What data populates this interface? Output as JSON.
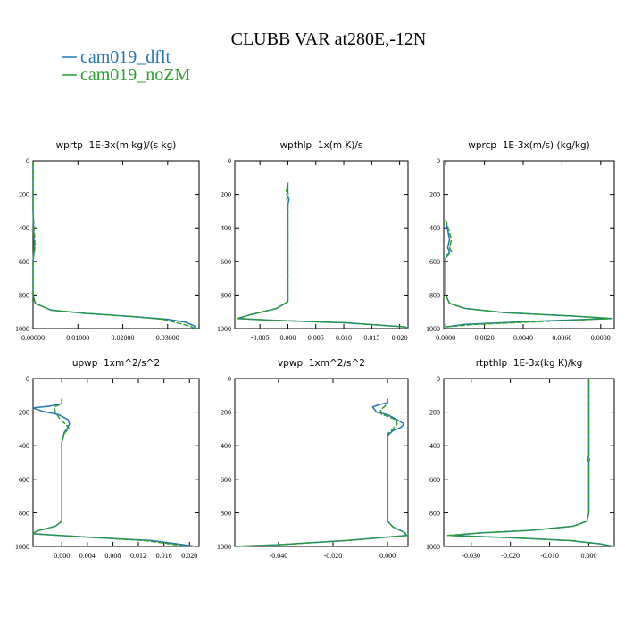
{
  "figure": {
    "title": "CLUBB VAR at280E,-12N",
    "legend": [
      {
        "name": "cam019_dflt",
        "color": "#1f77b4"
      },
      {
        "name": "cam019_noZM",
        "color": "#2ca02c"
      }
    ]
  },
  "chart_data": [
    {
      "type": "line",
      "title": "wprtp  1E-3x(m kg)/(s kg)",
      "xlim": [
        0.0,
        0.037
      ],
      "ylim": [
        0,
        1000
      ],
      "y_reversed": true,
      "xticks": [
        0.0,
        0.01,
        0.02,
        0.03
      ],
      "xtick_labels": [
        "0.00000",
        "0.01000",
        "0.02000",
        "0.03000"
      ],
      "yticks": [
        0,
        200,
        400,
        600,
        800,
        1000
      ],
      "ytick_labels": [
        "0",
        "200",
        "400",
        "600",
        "800",
        "1000"
      ],
      "series": [
        {
          "name": "cam019_dflt",
          "color": "#1f77b4",
          "points": [
            [
              0.0,
              5
            ],
            [
              0.0,
              300
            ],
            [
              0.0002,
              480
            ],
            [
              0.0002,
              520
            ],
            [
              0.0,
              600
            ],
            [
              0.0,
              800
            ],
            [
              0.0005,
              850
            ],
            [
              0.004,
              890
            ],
            [
              0.012,
              910
            ],
            [
              0.022,
              928
            ],
            [
              0.03,
              945
            ],
            [
              0.034,
              962
            ],
            [
              0.036,
              985
            ],
            [
              0.036,
              1000
            ]
          ]
        },
        {
          "name": "cam019_noZM",
          "color": "#2ca02c",
          "points": [
            [
              0.0,
              5
            ],
            [
              0.0,
              300
            ],
            [
              0.0004,
              480
            ],
            [
              0.0004,
              520
            ],
            [
              0.0,
              600
            ],
            [
              0.0,
              800
            ],
            [
              0.0005,
              850
            ],
            [
              0.004,
              890
            ],
            [
              0.012,
              910
            ],
            [
              0.022,
              928
            ],
            [
              0.029,
              945
            ],
            [
              0.032,
              965
            ],
            [
              0.035,
              985
            ],
            [
              0.036,
              1000
            ]
          ]
        }
      ]
    },
    {
      "type": "line",
      "title": "wpthlp  1x(m K)/s",
      "xlim": [
        -0.0095,
        0.0215
      ],
      "ylim": [
        0,
        1000
      ],
      "y_reversed": true,
      "xticks": [
        -0.005,
        0.0,
        0.005,
        0.01,
        0.015,
        0.02
      ],
      "xtick_labels": [
        "-0.005",
        "0.000",
        "0.005",
        "0.010",
        "0.015",
        "0.020"
      ],
      "yticks": [
        0,
        200,
        400,
        600,
        800,
        1000
      ],
      "ytick_labels": [
        "0",
        "200",
        "400",
        "600",
        "800",
        "1000"
      ],
      "series": [
        {
          "name": "cam019_dflt",
          "color": "#1f77b4",
          "points": [
            [
              0.0,
              130
            ],
            [
              0.0,
              180
            ],
            [
              -0.0002,
              200
            ],
            [
              0.0002,
              230
            ],
            [
              0.0,
              260
            ],
            [
              0.0,
              800
            ],
            [
              0.0,
              840
            ],
            [
              -0.002,
              880
            ],
            [
              -0.007,
              920
            ],
            [
              -0.009,
              940
            ],
            [
              -0.003,
              950
            ],
            [
              0.01,
              965
            ],
            [
              0.021,
              990
            ],
            [
              0.0215,
              1000
            ]
          ]
        },
        {
          "name": "cam019_noZM",
          "color": "#2ca02c",
          "points": [
            [
              0.0,
              130
            ],
            [
              -0.0003,
              180
            ],
            [
              0.0002,
              200
            ],
            [
              -0.0002,
              230
            ],
            [
              0.0,
              260
            ],
            [
              0.0,
              800
            ],
            [
              0.0,
              840
            ],
            [
              -0.002,
              880
            ],
            [
              -0.007,
              920
            ],
            [
              -0.009,
              940
            ],
            [
              -0.003,
              950
            ],
            [
              0.01,
              965
            ],
            [
              0.021,
              990
            ],
            [
              0.0215,
              1000
            ]
          ]
        }
      ]
    },
    {
      "type": "line",
      "title": "wprcp  1E-3x(m/s) (kg/kg)",
      "xlim": [
        -0.0001,
        0.0087
      ],
      "ylim": [
        0,
        1000
      ],
      "y_reversed": true,
      "xticks": [
        0.0,
        0.002,
        0.004,
        0.006,
        0.008
      ],
      "xtick_labels": [
        "0.0000",
        "0.0020",
        "0.0040",
        "0.0060",
        "0.0080"
      ],
      "yticks": [
        0,
        200,
        400,
        600,
        800,
        1000
      ],
      "ytick_labels": [
        "0",
        "200",
        "400",
        "600",
        "800",
        "1000"
      ],
      "series": [
        {
          "name": "cam019_dflt",
          "color": "#1f77b4",
          "points": [
            [
              0.0,
              350
            ],
            [
              0.0002,
              470
            ],
            [
              0.0001,
              520
            ],
            [
              0.0002,
              540
            ],
            [
              0.0,
              580
            ],
            [
              0.0,
              800
            ],
            [
              0.0002,
              850
            ],
            [
              0.001,
              880
            ],
            [
              0.003,
              905
            ],
            [
              0.0065,
              925
            ],
            [
              0.0085,
              940
            ],
            [
              0.005,
              955
            ],
            [
              0.001,
              975
            ],
            [
              0.0,
              990
            ]
          ]
        },
        {
          "name": "cam019_noZM",
          "color": "#2ca02c",
          "points": [
            [
              0.0,
              350
            ],
            [
              0.0003,
              470
            ],
            [
              0.0002,
              520
            ],
            [
              0.0003,
              540
            ],
            [
              0.0,
              580
            ],
            [
              0.0,
              800
            ],
            [
              0.0002,
              850
            ],
            [
              0.001,
              880
            ],
            [
              0.003,
              905
            ],
            [
              0.0065,
              925
            ],
            [
              0.0086,
              940
            ],
            [
              0.0055,
              955
            ],
            [
              0.0015,
              975
            ],
            [
              0.0,
              990
            ]
          ]
        }
      ]
    },
    {
      "type": "line",
      "title": "upwp  1xm^2/s^2",
      "xlim": [
        -0.0045,
        0.0215
      ],
      "ylim": [
        0,
        1000
      ],
      "y_reversed": true,
      "xticks": [
        0.0,
        0.004,
        0.008,
        0.012,
        0.016,
        0.02
      ],
      "xtick_labels": [
        "0.000",
        "0.004",
        "0.008",
        "0.012",
        "0.016",
        "0.020"
      ],
      "yticks": [
        0,
        200,
        400,
        600,
        800,
        1000
      ],
      "ytick_labels": [
        "0",
        "200",
        "400",
        "600",
        "800",
        "1000"
      ],
      "series": [
        {
          "name": "cam019_dflt",
          "color": "#1f77b4",
          "points": [
            [
              0.0,
              120
            ],
            [
              0.0,
              150
            ],
            [
              -0.002,
              165
            ],
            [
              -0.0045,
              175
            ],
            [
              -0.003,
              195
            ],
            [
              -0.0005,
              215
            ],
            [
              0.001,
              245
            ],
            [
              0.0012,
              270
            ],
            [
              0.0008,
              300
            ],
            [
              0.0004,
              320
            ],
            [
              0.0,
              380
            ],
            [
              0.0,
              800
            ],
            [
              0.0,
              850
            ],
            [
              -0.001,
              880
            ],
            [
              -0.004,
              910
            ],
            [
              -0.0045,
              925
            ],
            [
              0.004,
              945
            ],
            [
              0.014,
              965
            ],
            [
              0.018,
              985
            ],
            [
              0.021,
              1000
            ]
          ]
        },
        {
          "name": "cam019_noZM",
          "color": "#2ca02c",
          "points": [
            [
              0.0,
              120
            ],
            [
              0.0,
              150
            ],
            [
              -0.0012,
              170
            ],
            [
              -0.001,
              200
            ],
            [
              -0.0003,
              240
            ],
            [
              0.0008,
              280
            ],
            [
              0.0012,
              300
            ],
            [
              0.0005,
              320
            ],
            [
              0.0,
              380
            ],
            [
              0.0,
              800
            ],
            [
              0.0,
              850
            ],
            [
              -0.001,
              880
            ],
            [
              -0.004,
              910
            ],
            [
              -0.0045,
              925
            ],
            [
              0.004,
              945
            ],
            [
              0.013,
              965
            ],
            [
              0.017,
              985
            ],
            [
              0.0195,
              1000
            ]
          ]
        }
      ]
    },
    {
      "type": "line",
      "title": "vpwp  1xm^2/s^2",
      "xlim": [
        -0.056,
        0.0075
      ],
      "ylim": [
        0,
        1000
      ],
      "y_reversed": true,
      "xticks": [
        -0.04,
        -0.02,
        0.0
      ],
      "xtick_labels": [
        "-0.040",
        "-0.020",
        "0.000"
      ],
      "yticks": [
        0,
        200,
        400,
        600,
        800,
        1000
      ],
      "ytick_labels": [
        "0",
        "200",
        "400",
        "600",
        "800",
        "1000"
      ],
      "series": [
        {
          "name": "cam019_dflt",
          "color": "#1f77b4",
          "points": [
            [
              0.0,
              120
            ],
            [
              0.0,
              145
            ],
            [
              -0.003,
              155
            ],
            [
              -0.0055,
              170
            ],
            [
              -0.004,
              200
            ],
            [
              0.0,
              215
            ],
            [
              0.003,
              240
            ],
            [
              0.006,
              270
            ],
            [
              0.005,
              290
            ],
            [
              0.002,
              310
            ],
            [
              0.0,
              340
            ],
            [
              0.0,
              800
            ],
            [
              0.0,
              850
            ],
            [
              0.002,
              885
            ],
            [
              0.006,
              915
            ],
            [
              0.007,
              935
            ],
            [
              -0.015,
              965
            ],
            [
              -0.04,
              990
            ],
            [
              -0.056,
              1000
            ]
          ]
        },
        {
          "name": "cam019_noZM",
          "color": "#2ca02c",
          "points": [
            [
              0.0,
              120
            ],
            [
              0.0,
              150
            ],
            [
              -0.001,
              165
            ],
            [
              -0.0025,
              185
            ],
            [
              -0.0025,
              210
            ],
            [
              0.0,
              225
            ],
            [
              0.003,
              245
            ],
            [
              0.0035,
              270
            ],
            [
              0.002,
              300
            ],
            [
              0.0,
              330
            ],
            [
              0.0,
              800
            ],
            [
              0.0,
              850
            ],
            [
              0.002,
              885
            ],
            [
              0.006,
              915
            ],
            [
              0.0075,
              935
            ],
            [
              -0.015,
              965
            ],
            [
              -0.04,
              990
            ],
            [
              -0.056,
              1000
            ]
          ]
        }
      ]
    },
    {
      "type": "line",
      "title": "rtpthlp  1E-3x(kg K)/kg",
      "xlim": [
        -0.037,
        0.0065
      ],
      "ylim": [
        0,
        1000
      ],
      "y_reversed": true,
      "xticks": [
        -0.03,
        -0.02,
        -0.01,
        0.0
      ],
      "xtick_labels": [
        "-0.030",
        "-0.020",
        "-0.010",
        "0.000"
      ],
      "yticks": [
        0,
        200,
        400,
        600,
        800,
        1000
      ],
      "ytick_labels": [
        "0",
        "200",
        "400",
        "600",
        "800",
        "1000"
      ],
      "series": [
        {
          "name": "cam019_dflt",
          "color": "#1f77b4",
          "points": [
            [
              0.0,
              5
            ],
            [
              0.0,
              460
            ],
            [
              -0.0003,
              480
            ],
            [
              0.0,
              500
            ],
            [
              0.0,
              800
            ],
            [
              -0.0005,
              850
            ],
            [
              -0.004,
              880
            ],
            [
              -0.015,
              905
            ],
            [
              -0.028,
              920
            ],
            [
              -0.035,
              935
            ],
            [
              -0.02,
              948
            ],
            [
              -0.005,
              965
            ],
            [
              0.003,
              985
            ],
            [
              0.0065,
              1000
            ]
          ]
        },
        {
          "name": "cam019_noZM",
          "color": "#2ca02c",
          "points": [
            [
              0.0,
              5
            ],
            [
              0.0,
              460
            ],
            [
              0.0002,
              480
            ],
            [
              0.0,
              500
            ],
            [
              0.0,
              800
            ],
            [
              -0.0005,
              850
            ],
            [
              -0.004,
              880
            ],
            [
              -0.015,
              905
            ],
            [
              -0.028,
              920
            ],
            [
              -0.036,
              935
            ],
            [
              -0.02,
              948
            ],
            [
              -0.005,
              965
            ],
            [
              0.003,
              985
            ],
            [
              0.0065,
              1000
            ]
          ]
        }
      ]
    }
  ]
}
